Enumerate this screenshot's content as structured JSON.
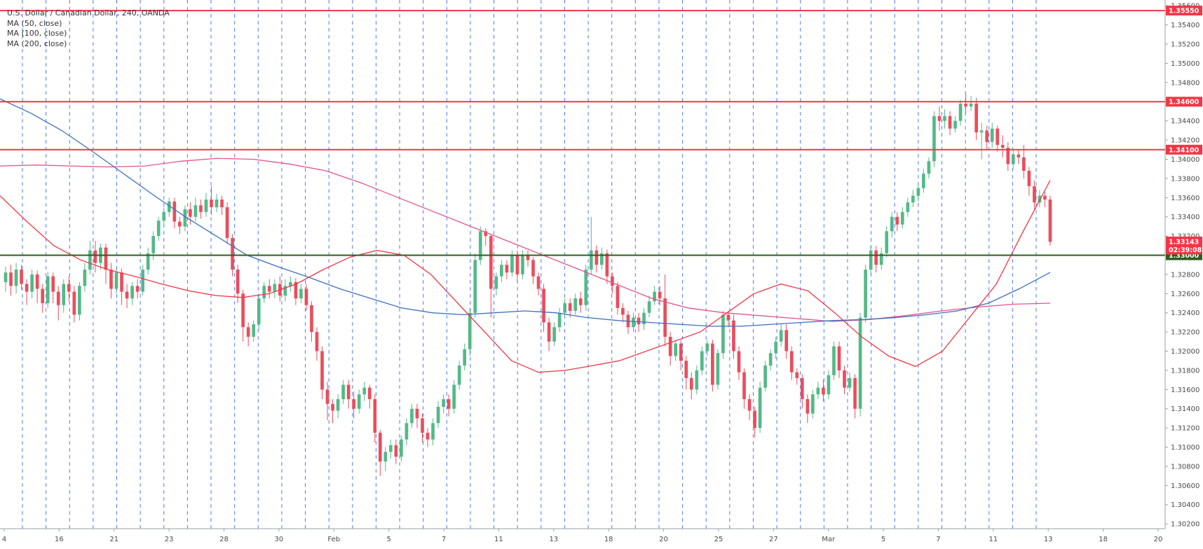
{
  "legend": {
    "title": "U.S. Dollar / Canadian Dollar, 240, OANDA",
    "ma1": "MA (50, close)",
    "ma2": "MA (100, close)",
    "ma3": "MA (200, close)"
  },
  "chart_data": {
    "type": "candlestick",
    "title": "U.S. Dollar / Canadian Dollar, 240, OANDA",
    "y_ticks": [
      "1.35600",
      "1.35400",
      "1.35200",
      "1.35000",
      "1.34800",
      "1.34600",
      "1.34400",
      "1.34200",
      "1.34000",
      "1.33800",
      "1.33600",
      "1.33400",
      "1.33200",
      "1.33000",
      "1.32800",
      "1.32600",
      "1.32400",
      "1.32200",
      "1.32000",
      "1.31800",
      "1.31600",
      "1.31400",
      "1.31200",
      "1.31000",
      "1.30800",
      "1.30600",
      "1.30400",
      "1.30200"
    ],
    "ylim": [
      1.3015,
      1.3566
    ],
    "x_ticks": [
      "4",
      "16",
      "21",
      "23",
      "28",
      "30",
      "Feb",
      "5",
      "7",
      "11",
      "13",
      "18",
      "20",
      "25",
      "27",
      "Mar",
      "5",
      "7",
      "11",
      "13",
      "18",
      "20"
    ],
    "horizontal_levels": [
      {
        "value": 1.3555,
        "label": "1.35550",
        "color": "#f23645"
      },
      {
        "value": 1.346,
        "label": "1.34600",
        "color": "#f23645"
      },
      {
        "value": 1.341,
        "label": "1.34100",
        "color": "#f23645"
      },
      {
        "value": 1.33,
        "label": "1.33000",
        "color": "#2e5e1e"
      }
    ],
    "price_labels": [
      {
        "value": 1.33143,
        "label": "1.33143",
        "color": "#f23645"
      },
      {
        "value": 1.3306,
        "label": "02:39:08",
        "color": "#f23645"
      }
    ],
    "colors": {
      "up": "#53b987",
      "down": "#eb4d5c",
      "ma50": "#f23645",
      "ma100": "#3d6fc4",
      "ma200": "#e8528a",
      "grid": "#2962ff"
    },
    "ma50": [
      1.3362,
      1.3335,
      1.331,
      1.3295,
      1.3285,
      1.3278,
      1.327,
      1.3263,
      1.3258,
      1.3256,
      1.326,
      1.327,
      1.3285,
      1.3298,
      1.3305,
      1.33,
      1.328,
      1.325,
      1.322,
      1.319,
      1.3178,
      1.318,
      1.3185,
      1.319,
      1.32,
      1.321,
      1.322,
      1.324,
      1.326,
      1.327,
      1.3263,
      1.324,
      1.3215,
      1.3195,
      1.3184,
      1.32,
      1.3235,
      1.327,
      1.3325,
      1.3378
    ],
    "ma100": [
      1.3463,
      1.3448,
      1.343,
      1.3408,
      1.3385,
      1.3362,
      1.334,
      1.332,
      1.33,
      1.3288,
      1.3277,
      1.3265,
      1.3255,
      1.3245,
      1.324,
      1.3238,
      1.324,
      1.3242,
      1.324,
      1.3235,
      1.3232,
      1.323,
      1.3228,
      1.3226,
      1.3226,
      1.3228,
      1.323,
      1.3232,
      1.3233,
      1.3235,
      1.3238,
      1.3242,
      1.325,
      1.3265,
      1.3282
    ],
    "ma200": [
      1.3393,
      1.3394,
      1.3393,
      1.3392,
      1.3393,
      1.3398,
      1.3401,
      1.34,
      1.3395,
      1.3388,
      1.3375,
      1.336,
      1.3345,
      1.333,
      1.3315,
      1.33,
      1.3285,
      1.327,
      1.3255,
      1.3245,
      1.324,
      1.3237,
      1.3234,
      1.3231,
      1.3233,
      1.3237,
      1.3242,
      1.3246,
      1.3249,
      1.325
    ],
    "candles": [
      [
        1.3272,
        1.3282,
        1.3262,
        1.3288
      ],
      [
        1.3282,
        1.3268,
        1.3258,
        1.329
      ],
      [
        1.3268,
        1.3285,
        1.326,
        1.3292
      ],
      [
        1.3285,
        1.327,
        1.3264,
        1.329
      ],
      [
        1.327,
        1.3262,
        1.3248,
        1.3275
      ],
      [
        1.3262,
        1.328,
        1.3255,
        1.3285
      ],
      [
        1.328,
        1.3265,
        1.325,
        1.3284
      ],
      [
        1.3265,
        1.325,
        1.324,
        1.327
      ],
      [
        1.325,
        1.3278,
        1.3245,
        1.3283
      ],
      [
        1.3278,
        1.3262,
        1.325,
        1.3282
      ],
      [
        1.3262,
        1.3248,
        1.3232,
        1.3268
      ],
      [
        1.3248,
        1.327,
        1.324,
        1.3275
      ],
      [
        1.327,
        1.3262,
        1.3252,
        1.3278
      ],
      [
        1.3262,
        1.3238,
        1.323,
        1.3268
      ],
      [
        1.3238,
        1.3268,
        1.3232,
        1.3272
      ],
      [
        1.3268,
        1.3285,
        1.3262,
        1.3292
      ],
      [
        1.3285,
        1.3305,
        1.328,
        1.3315
      ],
      [
        1.3305,
        1.3292,
        1.3282,
        1.3315
      ],
      [
        1.3292,
        1.3308,
        1.3285,
        1.3312
      ],
      [
        1.3308,
        1.3285,
        1.327,
        1.3312
      ],
      [
        1.3285,
        1.3265,
        1.3255,
        1.3292
      ],
      [
        1.3265,
        1.3282,
        1.326,
        1.3287
      ],
      [
        1.3282,
        1.3262,
        1.3248,
        1.3286
      ],
      [
        1.3262,
        1.3255,
        1.3245,
        1.327
      ],
      [
        1.3255,
        1.3268,
        1.3248,
        1.3272
      ],
      [
        1.3268,
        1.3262,
        1.3255,
        1.3275
      ],
      [
        1.3262,
        1.3285,
        1.3258,
        1.329
      ],
      [
        1.3285,
        1.3302,
        1.328,
        1.3308
      ],
      [
        1.3302,
        1.332,
        1.3295,
        1.3325
      ],
      [
        1.332,
        1.3336,
        1.3315,
        1.334
      ],
      [
        1.3336,
        1.3345,
        1.333,
        1.335
      ],
      [
        1.3345,
        1.3356,
        1.334,
        1.336
      ],
      [
        1.3356,
        1.3335,
        1.3328,
        1.336
      ],
      [
        1.3335,
        1.333,
        1.3322,
        1.334
      ],
      [
        1.333,
        1.3348,
        1.3325,
        1.3352
      ],
      [
        1.3348,
        1.334,
        1.3332,
        1.3355
      ],
      [
        1.334,
        1.3352,
        1.3335,
        1.336
      ],
      [
        1.3352,
        1.3345,
        1.3338,
        1.3358
      ],
      [
        1.3345,
        1.3358,
        1.334,
        1.3365
      ],
      [
        1.3358,
        1.335,
        1.3342,
        1.3372
      ],
      [
        1.335,
        1.3358,
        1.3345,
        1.3364
      ],
      [
        1.3358,
        1.335,
        1.3342,
        1.3362
      ],
      [
        1.335,
        1.3318,
        1.3312,
        1.3355
      ],
      [
        1.3318,
        1.3285,
        1.3278,
        1.3322
      ],
      [
        1.3285,
        1.326,
        1.325,
        1.329
      ],
      [
        1.326,
        1.3225,
        1.321,
        1.3264
      ],
      [
        1.3225,
        1.3215,
        1.3205,
        1.323
      ],
      [
        1.3215,
        1.3228,
        1.321,
        1.3232
      ],
      [
        1.3228,
        1.3255,
        1.3222,
        1.326
      ],
      [
        1.3255,
        1.3268,
        1.325,
        1.3272
      ],
      [
        1.3268,
        1.3262,
        1.3255,
        1.3275
      ],
      [
        1.3262,
        1.327,
        1.3255,
        1.3275
      ],
      [
        1.327,
        1.3258,
        1.3252,
        1.3278
      ],
      [
        1.3258,
        1.3268,
        1.3252,
        1.3275
      ],
      [
        1.3268,
        1.3272,
        1.3262,
        1.3278
      ],
      [
        1.3272,
        1.3255,
        1.3248,
        1.3276
      ],
      [
        1.3255,
        1.3265,
        1.325,
        1.327
      ],
      [
        1.3265,
        1.3248,
        1.3242,
        1.327
      ],
      [
        1.3248,
        1.322,
        1.321,
        1.3252
      ],
      [
        1.322,
        1.32,
        1.319,
        1.3225
      ],
      [
        1.32,
        1.316,
        1.315,
        1.3205
      ],
      [
        1.316,
        1.3145,
        1.3128,
        1.3168
      ],
      [
        1.3145,
        1.3138,
        1.3125,
        1.315
      ],
      [
        1.3138,
        1.315,
        1.313,
        1.3155
      ],
      [
        1.315,
        1.3165,
        1.3145,
        1.317
      ],
      [
        1.3165,
        1.315,
        1.314,
        1.317
      ],
      [
        1.315,
        1.314,
        1.313,
        1.3158
      ],
      [
        1.314,
        1.3155,
        1.3135,
        1.316
      ],
      [
        1.3155,
        1.3162,
        1.3148,
        1.3168
      ],
      [
        1.3162,
        1.315,
        1.314,
        1.3165
      ],
      [
        1.315,
        1.3115,
        1.3105,
        1.3155
      ],
      [
        1.3115,
        1.3085,
        1.307,
        1.3118
      ],
      [
        1.3085,
        1.3095,
        1.3075,
        1.31
      ],
      [
        1.3095,
        1.3102,
        1.3088,
        1.3108
      ],
      [
        1.3102,
        1.309,
        1.3082,
        1.3108
      ],
      [
        1.309,
        1.3108,
        1.3085,
        1.3112
      ],
      [
        1.3108,
        1.3125,
        1.3102,
        1.313
      ],
      [
        1.3125,
        1.314,
        1.312,
        1.3145
      ],
      [
        1.314,
        1.313,
        1.312,
        1.3145
      ],
      [
        1.313,
        1.3115,
        1.3105,
        1.3135
      ],
      [
        1.3115,
        1.3108,
        1.31,
        1.312
      ],
      [
        1.3108,
        1.3125,
        1.3102,
        1.313
      ],
      [
        1.3125,
        1.3142,
        1.312,
        1.3148
      ],
      [
        1.3142,
        1.315,
        1.3135,
        1.3155
      ],
      [
        1.315,
        1.314,
        1.3132,
        1.3155
      ],
      [
        1.314,
        1.3165,
        1.3135,
        1.317
      ],
      [
        1.3165,
        1.3185,
        1.316,
        1.319
      ],
      [
        1.3185,
        1.3202,
        1.318,
        1.3208
      ],
      [
        1.3202,
        1.324,
        1.3195,
        1.3245
      ],
      [
        1.324,
        1.3295,
        1.3235,
        1.3302
      ],
      [
        1.3295,
        1.3325,
        1.329,
        1.333
      ],
      [
        1.3325,
        1.332,
        1.331,
        1.3328
      ],
      [
        1.332,
        1.3265,
        1.3235,
        1.3322
      ],
      [
        1.3265,
        1.3278,
        1.3258,
        1.3282
      ],
      [
        1.3278,
        1.329,
        1.3272,
        1.3295
      ],
      [
        1.329,
        1.3282,
        1.3275,
        1.3295
      ],
      [
        1.3282,
        1.33,
        1.3278,
        1.3305
      ],
      [
        1.33,
        1.328,
        1.3272,
        1.3305
      ],
      [
        1.328,
        1.33,
        1.3275,
        1.3305
      ],
      [
        1.33,
        1.3295,
        1.3288,
        1.3305
      ],
      [
        1.3295,
        1.3278,
        1.327,
        1.3298
      ],
      [
        1.3278,
        1.3265,
        1.3258,
        1.3282
      ],
      [
        1.3265,
        1.323,
        1.322,
        1.327
      ],
      [
        1.323,
        1.321,
        1.32,
        1.3235
      ],
      [
        1.321,
        1.3225,
        1.3205,
        1.323
      ],
      [
        1.3225,
        1.324,
        1.322,
        1.3245
      ],
      [
        1.324,
        1.325,
        1.3235,
        1.3255
      ],
      [
        1.325,
        1.3242,
        1.3235,
        1.3255
      ],
      [
        1.3242,
        1.3255,
        1.3238,
        1.326
      ],
      [
        1.3255,
        1.3248,
        1.324,
        1.3262
      ],
      [
        1.3248,
        1.3285,
        1.3242,
        1.329
      ],
      [
        1.3285,
        1.3305,
        1.328,
        1.334
      ],
      [
        1.3305,
        1.329,
        1.3282,
        1.331
      ],
      [
        1.329,
        1.3302,
        1.3285,
        1.3308
      ],
      [
        1.3302,
        1.3278,
        1.327,
        1.3306
      ],
      [
        1.3278,
        1.3268,
        1.326,
        1.3282
      ],
      [
        1.3268,
        1.3245,
        1.3238,
        1.3272
      ],
      [
        1.3245,
        1.3238,
        1.323,
        1.325
      ],
      [
        1.3238,
        1.3225,
        1.3218,
        1.3242
      ],
      [
        1.3225,
        1.3235,
        1.322,
        1.324
      ],
      [
        1.3235,
        1.3228,
        1.322,
        1.324
      ],
      [
        1.3228,
        1.324,
        1.3222,
        1.3245
      ],
      [
        1.324,
        1.3252,
        1.3235,
        1.3258
      ],
      [
        1.3252,
        1.3262,
        1.3248,
        1.3268
      ],
      [
        1.3262,
        1.3255,
        1.3248,
        1.3268
      ],
      [
        1.3255,
        1.3215,
        1.3205,
        1.328
      ],
      [
        1.3215,
        1.3195,
        1.3185,
        1.322
      ],
      [
        1.3195,
        1.3208,
        1.319,
        1.3212
      ],
      [
        1.3208,
        1.319,
        1.318,
        1.3212
      ],
      [
        1.319,
        1.3172,
        1.316,
        1.3195
      ],
      [
        1.3172,
        1.316,
        1.315,
        1.3178
      ],
      [
        1.316,
        1.318,
        1.3155,
        1.3185
      ],
      [
        1.318,
        1.32,
        1.3175,
        1.3205
      ],
      [
        1.32,
        1.3208,
        1.3195,
        1.3212
      ],
      [
        1.3208,
        1.3165,
        1.3158,
        1.3212
      ],
      [
        1.3165,
        1.3198,
        1.316,
        1.3202
      ],
      [
        1.3198,
        1.3238,
        1.3192,
        1.3242
      ],
      [
        1.3238,
        1.3232,
        1.3225,
        1.3242
      ],
      [
        1.3232,
        1.32,
        1.3192,
        1.3238
      ],
      [
        1.32,
        1.3178,
        1.317,
        1.3205
      ],
      [
        1.3178,
        1.315,
        1.314,
        1.3182
      ],
      [
        1.315,
        1.3138,
        1.3128,
        1.3155
      ],
      [
        1.3138,
        1.312,
        1.311,
        1.3142
      ],
      [
        1.312,
        1.3162,
        1.3115,
        1.3168
      ],
      [
        1.3162,
        1.3185,
        1.3158,
        1.319
      ],
      [
        1.3185,
        1.3198,
        1.318,
        1.3202
      ],
      [
        1.3198,
        1.321,
        1.3192,
        1.3215
      ],
      [
        1.321,
        1.3222,
        1.3205,
        1.3228
      ],
      [
        1.3222,
        1.32,
        1.3192,
        1.3228
      ],
      [
        1.32,
        1.3178,
        1.317,
        1.3205
      ],
      [
        1.3178,
        1.3172,
        1.3165,
        1.3182
      ],
      [
        1.3172,
        1.315,
        1.314,
        1.3176
      ],
      [
        1.315,
        1.3135,
        1.3125,
        1.3155
      ],
      [
        1.3135,
        1.3155,
        1.313,
        1.316
      ],
      [
        1.3155,
        1.3162,
        1.315,
        1.3168
      ],
      [
        1.3162,
        1.3155,
        1.3148,
        1.317
      ],
      [
        1.3155,
        1.3175,
        1.315,
        1.318
      ],
      [
        1.3175,
        1.3205,
        1.317,
        1.321
      ],
      [
        1.3205,
        1.318,
        1.3172,
        1.321
      ],
      [
        1.318,
        1.3162,
        1.3155,
        1.3185
      ],
      [
        1.3162,
        1.3172,
        1.3158,
        1.3178
      ],
      [
        1.3172,
        1.314,
        1.313,
        1.3176
      ],
      [
        1.314,
        1.3235,
        1.3132,
        1.324
      ],
      [
        1.3235,
        1.3285,
        1.323,
        1.329
      ],
      [
        1.3285,
        1.3305,
        1.328,
        1.331
      ],
      [
        1.3305,
        1.329,
        1.3282,
        1.331
      ],
      [
        1.329,
        1.3302,
        1.3285,
        1.3308
      ],
      [
        1.3302,
        1.3325,
        1.3298,
        1.333
      ],
      [
        1.3325,
        1.334,
        1.3318,
        1.3345
      ],
      [
        1.334,
        1.3332,
        1.3325,
        1.3345
      ],
      [
        1.3332,
        1.3345,
        1.3328,
        1.335
      ],
      [
        1.3345,
        1.3355,
        1.334,
        1.336
      ],
      [
        1.3355,
        1.3362,
        1.335,
        1.3368
      ],
      [
        1.3362,
        1.337,
        1.3356,
        1.3375
      ],
      [
        1.337,
        1.3385,
        1.3365,
        1.339
      ],
      [
        1.3385,
        1.3398,
        1.338,
        1.3402
      ],
      [
        1.3398,
        1.3445,
        1.3392,
        1.345
      ],
      [
        1.3445,
        1.344,
        1.343,
        1.3455
      ],
      [
        1.344,
        1.3445,
        1.3432,
        1.3452
      ],
      [
        1.3445,
        1.3432,
        1.3425,
        1.345
      ],
      [
        1.3432,
        1.344,
        1.3428,
        1.3445
      ],
      [
        1.344,
        1.3458,
        1.3435,
        1.3462
      ],
      [
        1.3458,
        1.3455,
        1.3448,
        1.3468
      ],
      [
        1.3455,
        1.3458,
        1.345,
        1.3466
      ],
      [
        1.3458,
        1.3428,
        1.342,
        1.3464
      ],
      [
        1.3428,
        1.343,
        1.34,
        1.3438
      ],
      [
        1.343,
        1.3418,
        1.341,
        1.3435
      ],
      [
        1.3418,
        1.3432,
        1.3412,
        1.3438
      ],
      [
        1.3432,
        1.3415,
        1.3408,
        1.3435
      ],
      [
        1.3415,
        1.3412,
        1.3402,
        1.3425
      ],
      [
        1.3412,
        1.3395,
        1.3388,
        1.3418
      ],
      [
        1.3395,
        1.3405,
        1.339,
        1.341
      ],
      [
        1.3405,
        1.3402,
        1.3395,
        1.341
      ],
      [
        1.3402,
        1.3388,
        1.338,
        1.3415
      ],
      [
        1.3388,
        1.3372,
        1.3362,
        1.3392
      ],
      [
        1.3372,
        1.3355,
        1.3348,
        1.3378
      ],
      [
        1.3355,
        1.3362,
        1.335,
        1.3368
      ],
      [
        1.3362,
        1.3358,
        1.335,
        1.3366
      ],
      [
        1.3358,
        1.3314,
        1.331,
        1.3362
      ]
    ]
  }
}
